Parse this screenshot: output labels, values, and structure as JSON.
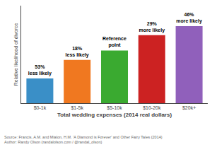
{
  "chart_data": {
    "type": "bar",
    "categories": [
      "$0-1k",
      "$1-5k",
      "$5-10k",
      "$10-20k",
      "$20k+"
    ],
    "values": [
      0.47,
      0.82,
      1.0,
      1.29,
      1.46
    ],
    "value_labels": [
      "53%\nless likely",
      "18%\nless likely",
      "Reference\npoint",
      "29%\nmore likely",
      "46%\nmore likely"
    ],
    "colors": [
      "#3a8fc7",
      "#f07820",
      "#3aaa30",
      "#cc2222",
      "#9060bb"
    ],
    "xlabel": "Total wedding expenses (2014 real dollars)",
    "ylabel": "Relative likelihood of divorce",
    "annotations": [
      "Source: Francis, A.M. and Mialon, H.M. 'A Diamond is Forever' and Other Fairy Tales (2014)\nAuthor: Randy Olson (randalolson.com / @randal_olson)"
    ],
    "ylim": [
      0,
      1.85
    ],
    "tick_labels": "x",
    "grid": false,
    "data_labels": true
  }
}
